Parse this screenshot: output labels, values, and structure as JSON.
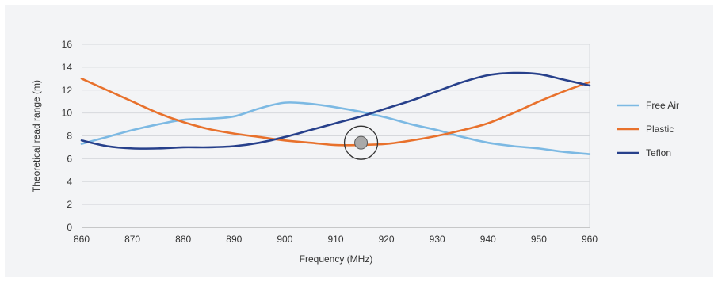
{
  "chart_data": {
    "type": "line",
    "title": "",
    "xlabel": "Frequency (MHz)",
    "ylabel": "Theoretical read range (m)",
    "xlim": [
      860,
      960
    ],
    "ylim": [
      0,
      16
    ],
    "x_ticks": [
      "860",
      "870",
      "880",
      "890",
      "900",
      "910",
      "920",
      "930",
      "940",
      "950",
      "960"
    ],
    "y_ticks": [
      "0",
      "2",
      "4",
      "6",
      "8",
      "10",
      "12",
      "14",
      "16"
    ],
    "grid": "horizontal",
    "legend": "right",
    "series": [
      {
        "name": "Free Air",
        "color": "#7cb9e3",
        "x": [
          860,
          865,
          870,
          875,
          880,
          885,
          890,
          895,
          900,
          905,
          910,
          915,
          920,
          925,
          930,
          935,
          940,
          945,
          950,
          955,
          960
        ],
        "y": [
          7.3,
          7.9,
          8.5,
          9.0,
          9.4,
          9.5,
          9.7,
          10.4,
          10.9,
          10.8,
          10.5,
          10.1,
          9.6,
          9.0,
          8.5,
          7.9,
          7.4,
          7.1,
          6.9,
          6.6,
          6.4
        ]
      },
      {
        "name": "Plastic",
        "color": "#e8712c",
        "x": [
          860,
          865,
          870,
          875,
          880,
          885,
          890,
          895,
          900,
          905,
          910,
          915,
          920,
          925,
          930,
          935,
          940,
          945,
          950,
          955,
          960
        ],
        "y": [
          13.0,
          12.0,
          11.0,
          10.0,
          9.2,
          8.6,
          8.2,
          7.9,
          7.6,
          7.4,
          7.2,
          7.2,
          7.3,
          7.6,
          8.0,
          8.5,
          9.1,
          10.0,
          11.0,
          11.9,
          12.7
        ]
      },
      {
        "name": "Teflon",
        "color": "#27408b",
        "x": [
          860,
          865,
          870,
          875,
          880,
          885,
          890,
          895,
          900,
          905,
          910,
          915,
          920,
          925,
          930,
          935,
          940,
          945,
          950,
          955,
          960
        ],
        "y": [
          7.6,
          7.1,
          6.9,
          6.9,
          7.0,
          7.0,
          7.1,
          7.4,
          7.9,
          8.5,
          9.1,
          9.7,
          10.4,
          11.1,
          11.9,
          12.7,
          13.3,
          13.5,
          13.4,
          12.9,
          12.4
        ]
      }
    ]
  },
  "marker": {
    "x": 915,
    "y": 7.4
  }
}
